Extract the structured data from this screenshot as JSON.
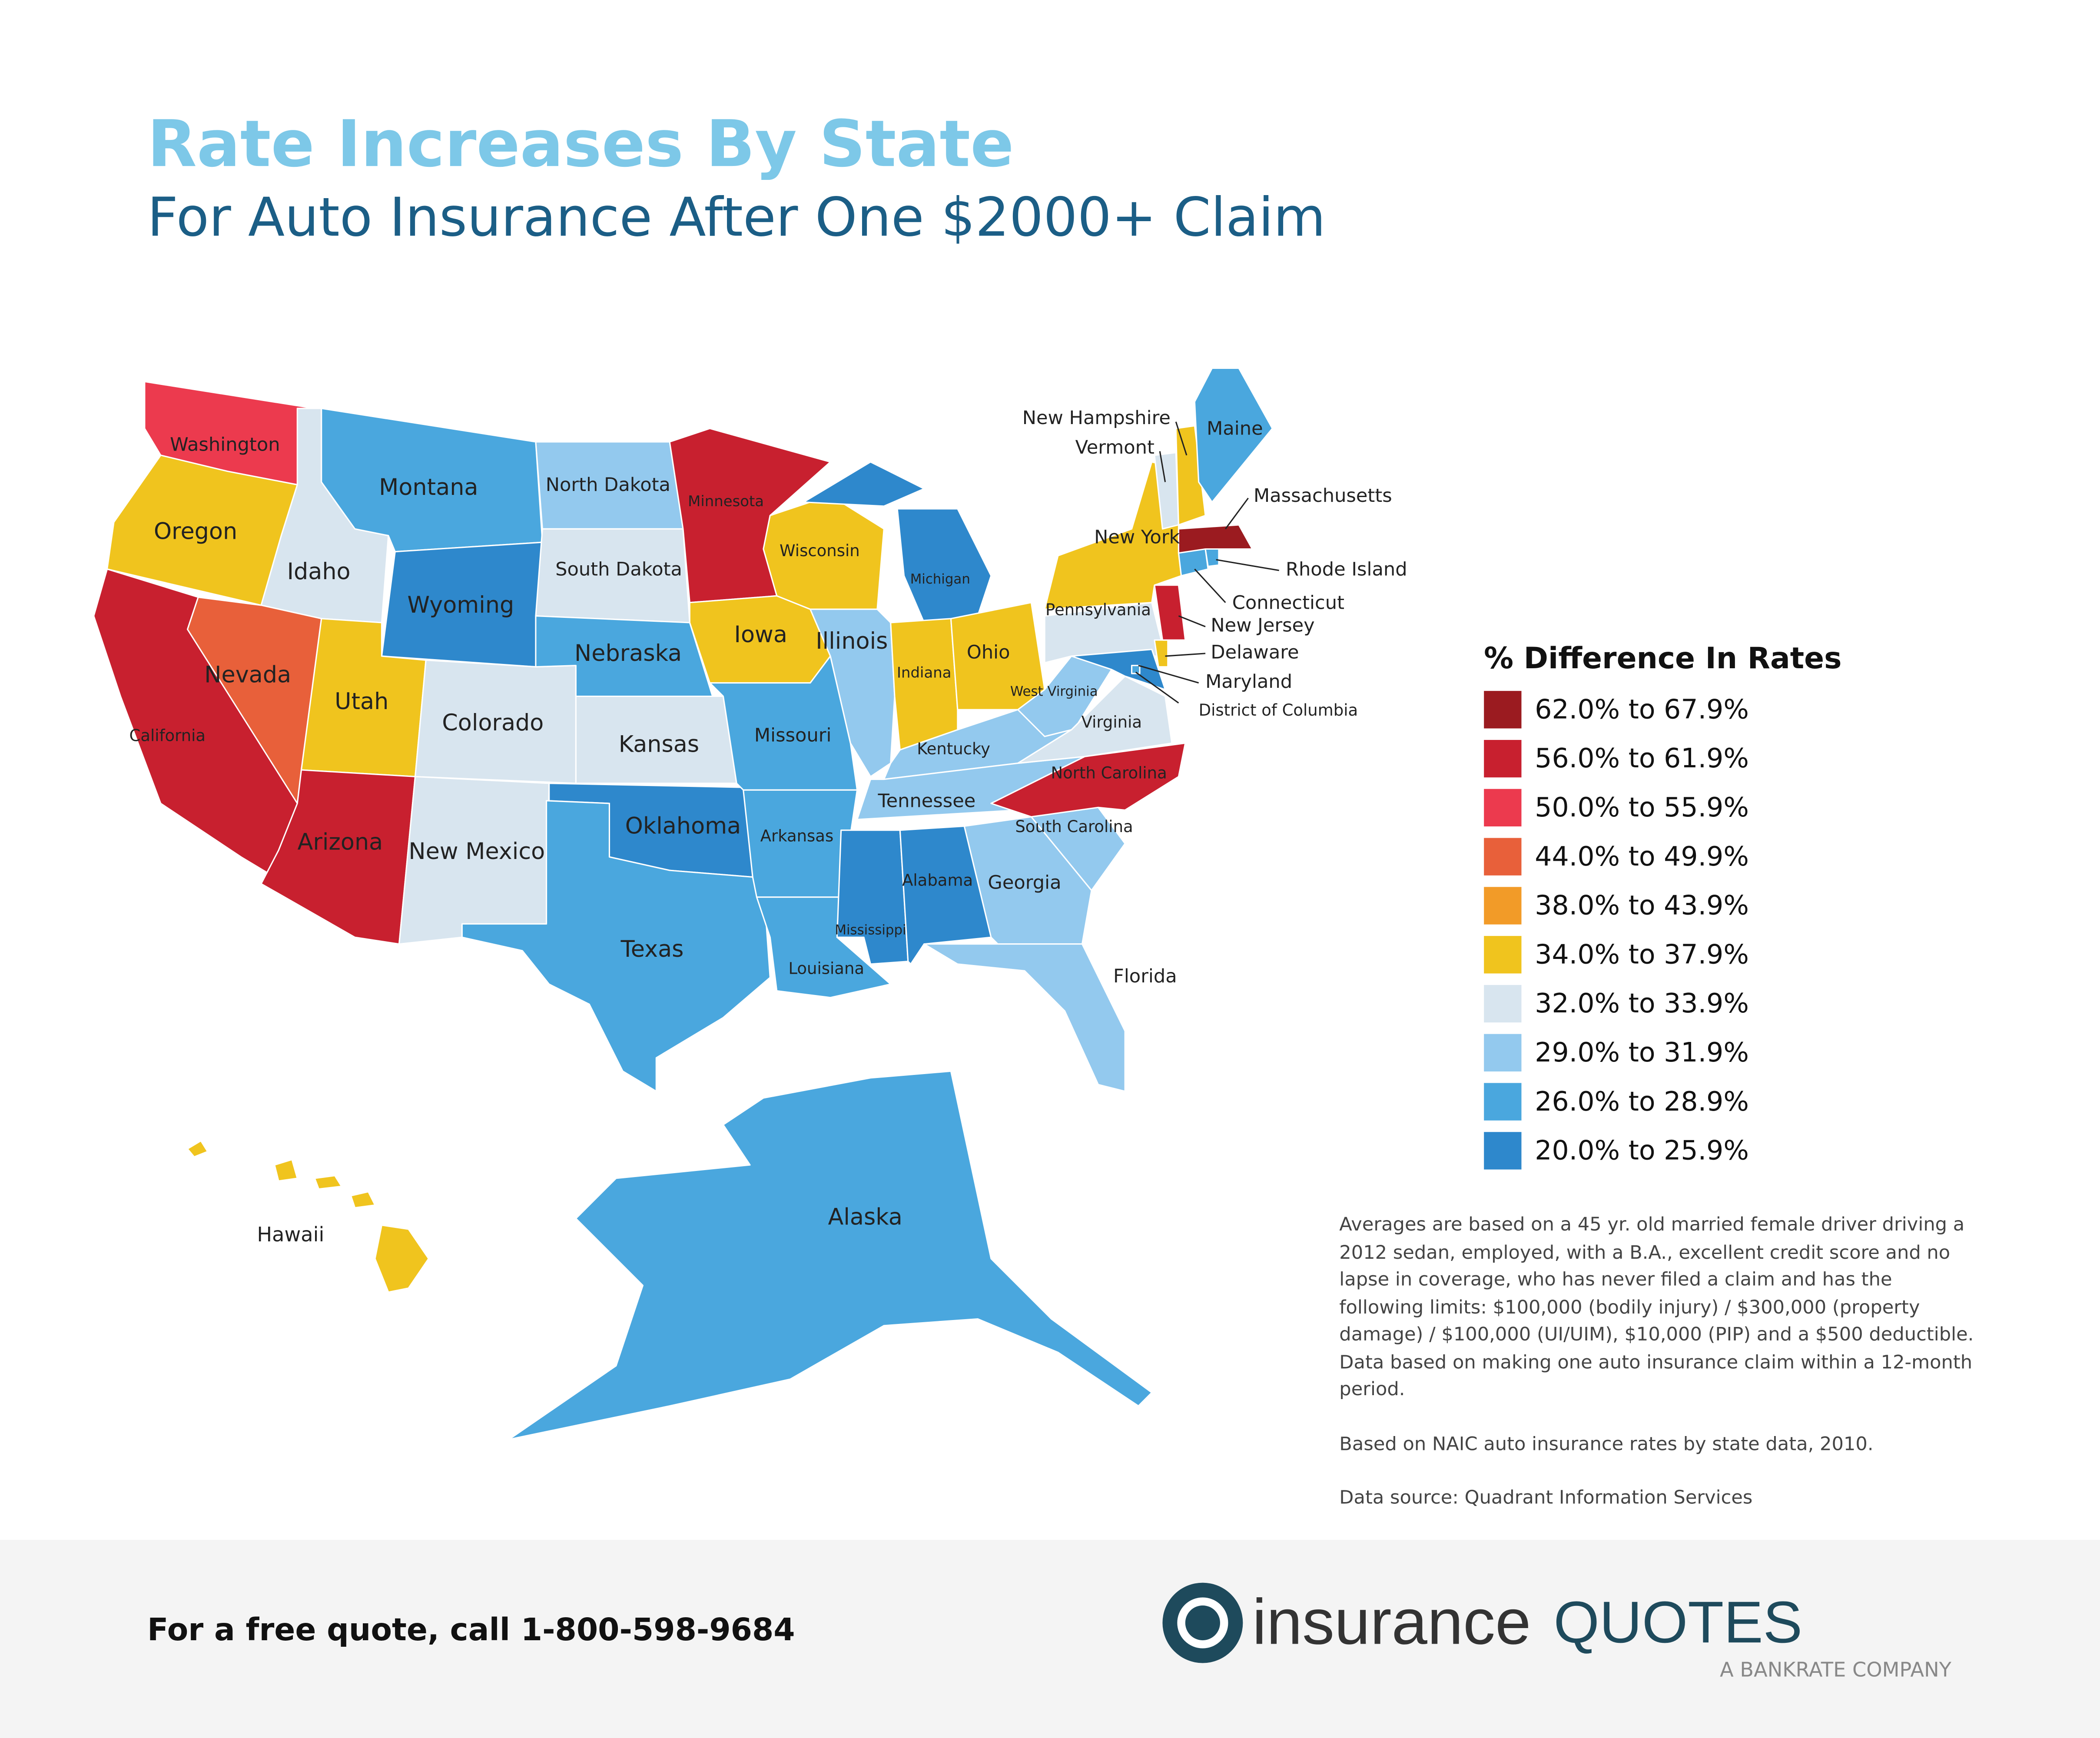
{
  "title": "Rate Increases By State",
  "subtitle": "For Auto Insurance After One $2000+ Claim",
  "legend": {
    "title": "% Difference In Rates",
    "items": [
      {
        "label": "62.0% to 67.9%",
        "color": "#9b1b20"
      },
      {
        "label": "56.0% to 61.9%",
        "color": "#c8202f"
      },
      {
        "label": "50.0% to 55.9%",
        "color": "#ec3a4e"
      },
      {
        "label": "44.0% to 49.9%",
        "color": "#e8603a"
      },
      {
        "label": "38.0% to 43.9%",
        "color": "#f29b28"
      },
      {
        "label": "34.0% to 37.9%",
        "color": "#f0c41e"
      },
      {
        "label": "32.0% to 33.9%",
        "color": "#d8e5ef"
      },
      {
        "label": "29.0% to 31.9%",
        "color": "#93c9ee"
      },
      {
        "label": "26.0% to 28.9%",
        "color": "#4aa7de"
      },
      {
        "label": "20.0% to 25.9%",
        "color": "#2e88cc"
      }
    ]
  },
  "states": [
    {
      "name": "Washington",
      "color": "#ec3a4e"
    },
    {
      "name": "Oregon",
      "color": "#f0c41e"
    },
    {
      "name": "California",
      "color": "#c8202f"
    },
    {
      "name": "Idaho",
      "color": "#d8e5ef"
    },
    {
      "name": "Nevada",
      "color": "#e8603a"
    },
    {
      "name": "Montana",
      "color": "#4aa7de"
    },
    {
      "name": "Wyoming",
      "color": "#2e88cc"
    },
    {
      "name": "Utah",
      "color": "#f0c41e"
    },
    {
      "name": "Arizona",
      "color": "#c8202f"
    },
    {
      "name": "Colorado",
      "color": "#d8e5ef"
    },
    {
      "name": "New Mexico",
      "color": "#d8e5ef"
    },
    {
      "name": "North Dakota",
      "color": "#93c9ee"
    },
    {
      "name": "South Dakota",
      "color": "#d8e5ef"
    },
    {
      "name": "Nebraska",
      "color": "#4aa7de"
    },
    {
      "name": "Kansas",
      "color": "#d8e5ef"
    },
    {
      "name": "Oklahoma",
      "color": "#2e88cc"
    },
    {
      "name": "Texas",
      "color": "#4aa7de"
    },
    {
      "name": "Minnesota",
      "color": "#c8202f"
    },
    {
      "name": "Iowa",
      "color": "#f0c41e"
    },
    {
      "name": "Missouri",
      "color": "#4aa7de"
    },
    {
      "name": "Arkansas",
      "color": "#4aa7de"
    },
    {
      "name": "Louisiana",
      "color": "#4aa7de"
    },
    {
      "name": "Wisconsin",
      "color": "#f0c41e"
    },
    {
      "name": "Illinois",
      "color": "#93c9ee"
    },
    {
      "name": "Michigan",
      "color": "#2e88cc"
    },
    {
      "name": "Indiana",
      "color": "#f0c41e"
    },
    {
      "name": "Ohio",
      "color": "#f0c41e"
    },
    {
      "name": "Kentucky",
      "color": "#93c9ee"
    },
    {
      "name": "Tennessee",
      "color": "#93c9ee"
    },
    {
      "name": "Mississippi",
      "color": "#2e88cc"
    },
    {
      "name": "Alabama",
      "color": "#2e88cc"
    },
    {
      "name": "Georgia",
      "color": "#93c9ee"
    },
    {
      "name": "Florida",
      "color": "#93c9ee"
    },
    {
      "name": "South Carolina",
      "color": "#93c9ee"
    },
    {
      "name": "North Carolina",
      "color": "#c8202f"
    },
    {
      "name": "Virginia",
      "color": "#d8e5ef"
    },
    {
      "name": "West Virginia",
      "color": "#93c9ee"
    },
    {
      "name": "Pennsylvania",
      "color": "#d8e5ef"
    },
    {
      "name": "Maryland",
      "color": "#2e88cc"
    },
    {
      "name": "Delaware",
      "color": "#f0c41e"
    },
    {
      "name": "District of Columbia",
      "color": "#4aa7de"
    },
    {
      "name": "New Jersey",
      "color": "#c8202f"
    },
    {
      "name": "New York",
      "color": "#f0c41e"
    },
    {
      "name": "Connecticut",
      "color": "#4aa7de"
    },
    {
      "name": "Rhode Island",
      "color": "#4aa7de"
    },
    {
      "name": "Massachusetts",
      "color": "#9b1b20"
    },
    {
      "name": "Vermont",
      "color": "#d8e5ef"
    },
    {
      "name": "New Hampshire",
      "color": "#f0c41e"
    },
    {
      "name": "Maine",
      "color": "#4aa7de"
    },
    {
      "name": "Alaska",
      "color": "#4aa7de"
    },
    {
      "name": "Hawaii",
      "color": "#f0c41e"
    }
  ],
  "notes": [
    "Averages are based on a 45 yr. old married female driver driving a 2012 sedan, employed, with a B.A., excellent credit score and no lapse in coverage, who has never filed a claim and has the following limits: $100,000 (bodily injury) / $300,000 (property damage) / $100,000 (UI/UIM), $10,000 (PIP) and a $500 deductible. Data based on making one auto insurance claim within a 12-month period.",
    "Based on NAIC auto insurance rates by state data, 2010.",
    "Data source: Quadrant Information Services"
  ],
  "footer": {
    "cta": "For a free quote, call 1-800-598-9684",
    "logo_main": "insurance",
    "logo_accent": "QUOTES",
    "logo_tagline": "A BANKRATE COMPANY"
  }
}
